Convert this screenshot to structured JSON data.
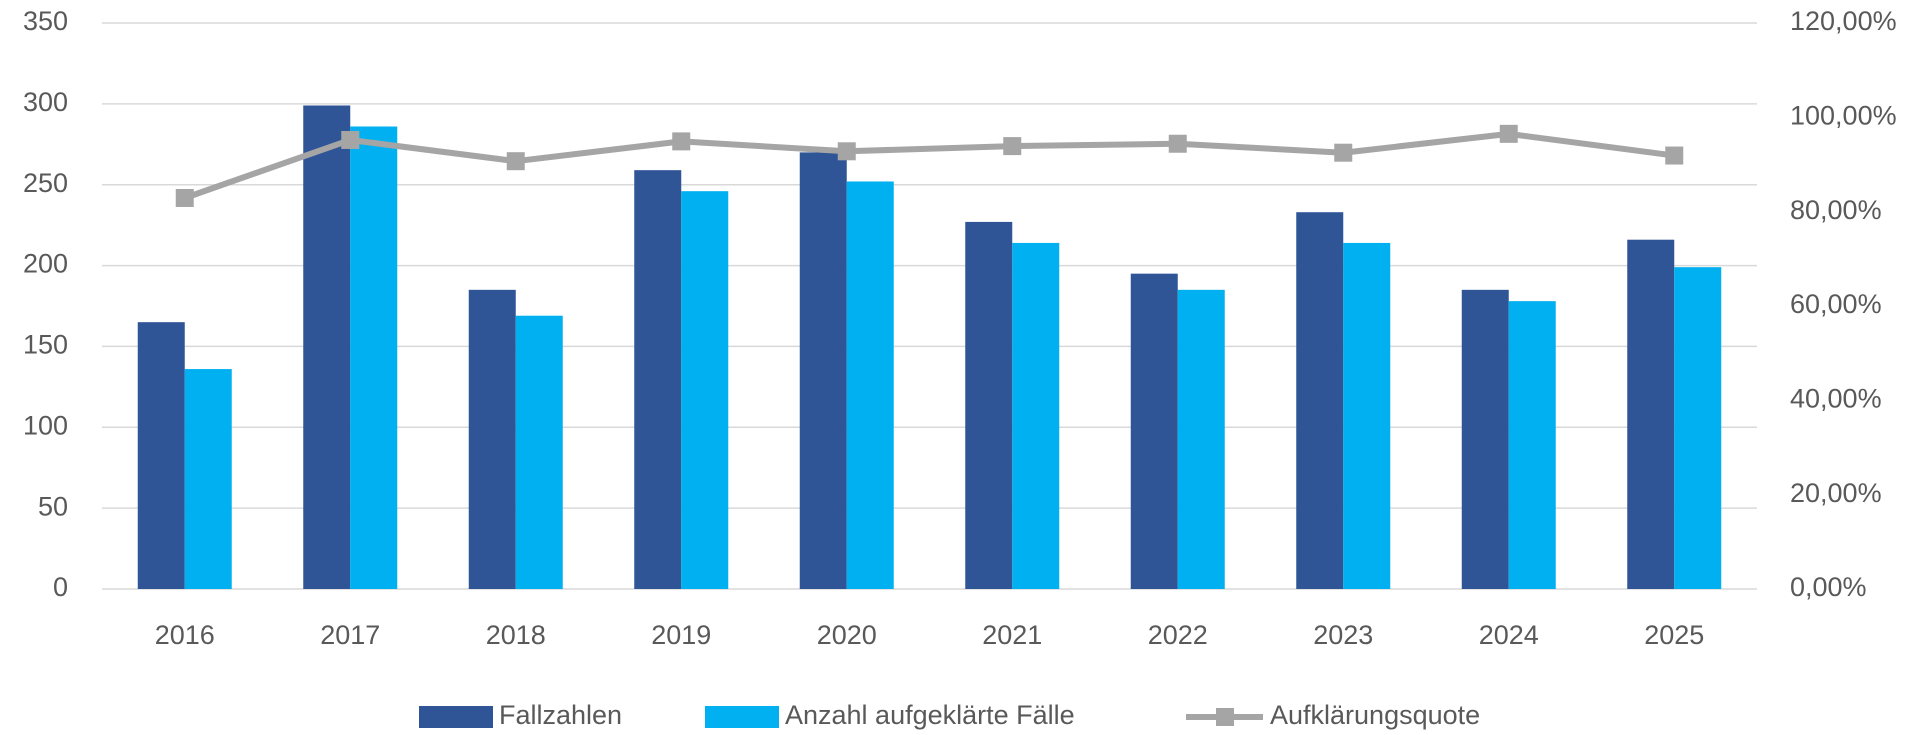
{
  "chart_data": {
    "type": "bar",
    "categories": [
      "2016",
      "2017",
      "2018",
      "2019",
      "2020",
      "2021",
      "2022",
      "2023",
      "2024",
      "2025"
    ],
    "series": [
      {
        "name": "Fallzahlen",
        "color": "#2f5597",
        "type": "bar",
        "values": [
          165,
          299,
          185,
          259,
          270,
          227,
          195,
          233,
          185,
          216
        ]
      },
      {
        "name": "Anzahl aufgeklärte Fälle",
        "color": "#00b0f0",
        "type": "bar",
        "values": [
          136,
          286,
          169,
          246,
          252,
          214,
          185,
          214,
          178,
          199
        ]
      },
      {
        "name": "Aufklärungsquote",
        "color": "#a5a5a5",
        "type": "line",
        "axis": "y2",
        "values": [
          82.9,
          95.2,
          90.7,
          94.9,
          92.8,
          93.9,
          94.4,
          92.5,
          96.5,
          91.9
        ]
      }
    ],
    "ylim": [
      0,
      350
    ],
    "yticks": [
      0,
      50,
      100,
      150,
      200,
      250,
      300,
      350
    ],
    "y2lim": [
      0,
      120
    ],
    "y2ticks": [
      {
        "value": 0,
        "label": "0,00%"
      },
      {
        "value": 20,
        "label": "20,00%"
      },
      {
        "value": 40,
        "label": "40,00%"
      },
      {
        "value": 60,
        "label": "60,00%"
      },
      {
        "value": 80,
        "label": "80,00%"
      },
      {
        "value": 100,
        "label": "100,00%"
      },
      {
        "value": 120,
        "label": "120,00%"
      }
    ],
    "grid": true,
    "legend": "bottom"
  }
}
